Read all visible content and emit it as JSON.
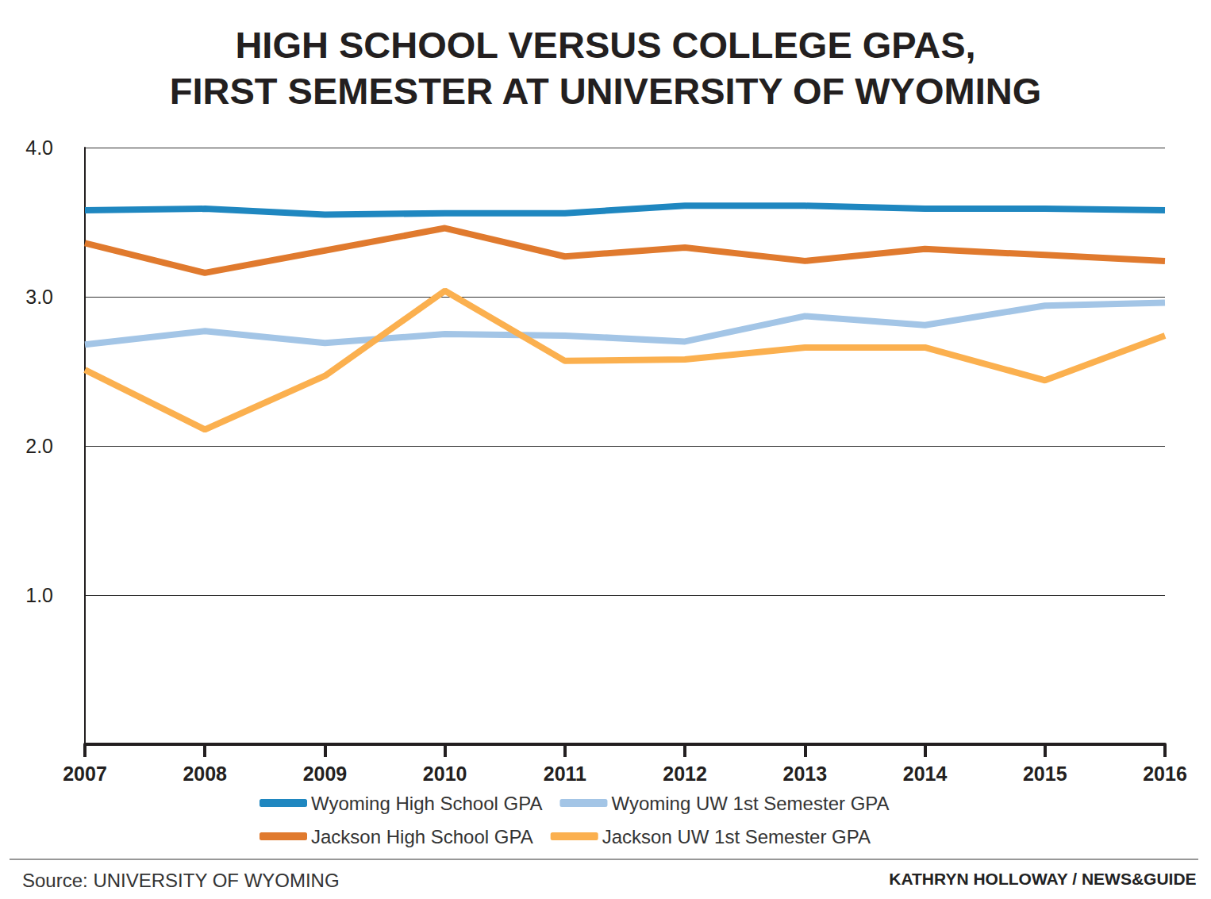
{
  "chart_data": {
    "type": "line",
    "title": "HIGH SCHOOL VERSUS COLLEGE GPAS,\nFIRST SEMESTER AT UNIVERSITY OF WYOMING",
    "categories": [
      "2007",
      "2008",
      "2009",
      "2010",
      "2011",
      "2012",
      "2013",
      "2014",
      "2015",
      "2016"
    ],
    "series": [
      {
        "name": "Wyoming High School GPA",
        "color": "#1f87c0",
        "values": [
          3.58,
          3.59,
          3.55,
          3.56,
          3.56,
          3.61,
          3.61,
          3.59,
          3.59,
          3.58
        ]
      },
      {
        "name": "Wyoming UW 1st Semester GPA",
        "color": "#a3c5e6",
        "values": [
          2.68,
          2.77,
          2.69,
          2.75,
          2.74,
          2.7,
          2.87,
          2.81,
          2.94,
          2.96
        ]
      },
      {
        "name": "Jackson High School GPA",
        "color": "#e07a2e",
        "values": [
          3.36,
          3.16,
          3.31,
          3.46,
          3.27,
          3.33,
          3.24,
          3.32,
          3.28,
          3.24
        ]
      },
      {
        "name": "Jackson UW 1st Semester GPA",
        "color": "#fbb04f",
        "values": [
          2.51,
          2.11,
          2.47,
          3.04,
          2.57,
          2.58,
          2.66,
          2.66,
          2.44,
          2.74
        ]
      }
    ],
    "ylim": [
      0,
      4
    ],
    "yticks": [
      {
        "value": 1,
        "label": "1.0"
      },
      {
        "value": 2,
        "label": "2.0"
      },
      {
        "value": 3,
        "label": "3.0"
      },
      {
        "value": 4,
        "label": "4.0"
      }
    ],
    "grid": true,
    "legend": "bottom",
    "annotations": [
      "Source: UNIVERSITY OF WYOMING",
      "KATHRYN HOLLOWAY / NEWS&GUIDE"
    ]
  }
}
